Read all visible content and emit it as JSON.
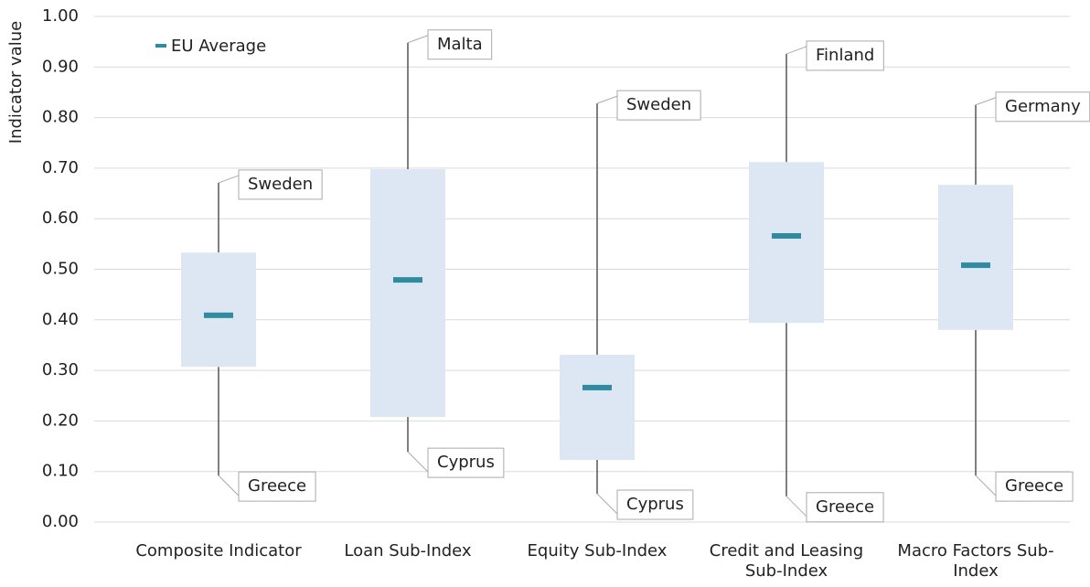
{
  "chart_data": {
    "type": "range-box",
    "y_label": "Indicator value",
    "categories": [
      "Composite Indicator",
      "Loan Sub-Index",
      "Equity Sub-Index",
      "Credit and Leasing Sub-Index",
      "Macro Factors Sub-Index"
    ],
    "max": [
      0.671,
      0.948,
      0.828,
      0.926,
      0.825
    ],
    "upper": [
      0.533,
      0.698,
      0.331,
      0.712,
      0.667
    ],
    "lower": [
      0.307,
      0.208,
      0.123,
      0.394,
      0.38
    ],
    "min": [
      0.092,
      0.139,
      0.056,
      0.051,
      0.092
    ],
    "max_labels": [
      "Sweden",
      "Malta",
      "Sweden",
      "Finland",
      "Germany"
    ],
    "min_labels": [
      "Greece",
      "Cyprus",
      "Cyprus",
      "Greece",
      "Greece"
    ],
    "series": [
      {
        "name": "EU Average",
        "color": "#2e8ba0",
        "values": [
          0.409,
          0.479,
          0.266,
          0.566,
          0.508
        ]
      }
    ],
    "box_color": "#dde7f3",
    "ylim": [
      0,
      1
    ],
    "yticks": [
      {
        "value": 0,
        "label": "0.00"
      },
      {
        "value": 0.1,
        "label": "0.10"
      },
      {
        "value": 0.2,
        "label": "0.20"
      },
      {
        "value": 0.3,
        "label": "0.30"
      },
      {
        "value": 0.4,
        "label": "0.40"
      },
      {
        "value": 0.5,
        "label": "0.50"
      },
      {
        "value": 0.6,
        "label": "0.60"
      },
      {
        "value": 0.7,
        "label": "0.70"
      },
      {
        "value": 0.8,
        "label": "0.80"
      },
      {
        "value": 0.9,
        "label": "0.90"
      },
      {
        "value": 1,
        "label": "1.00"
      }
    ],
    "grid": true,
    "legend": "top-left"
  }
}
